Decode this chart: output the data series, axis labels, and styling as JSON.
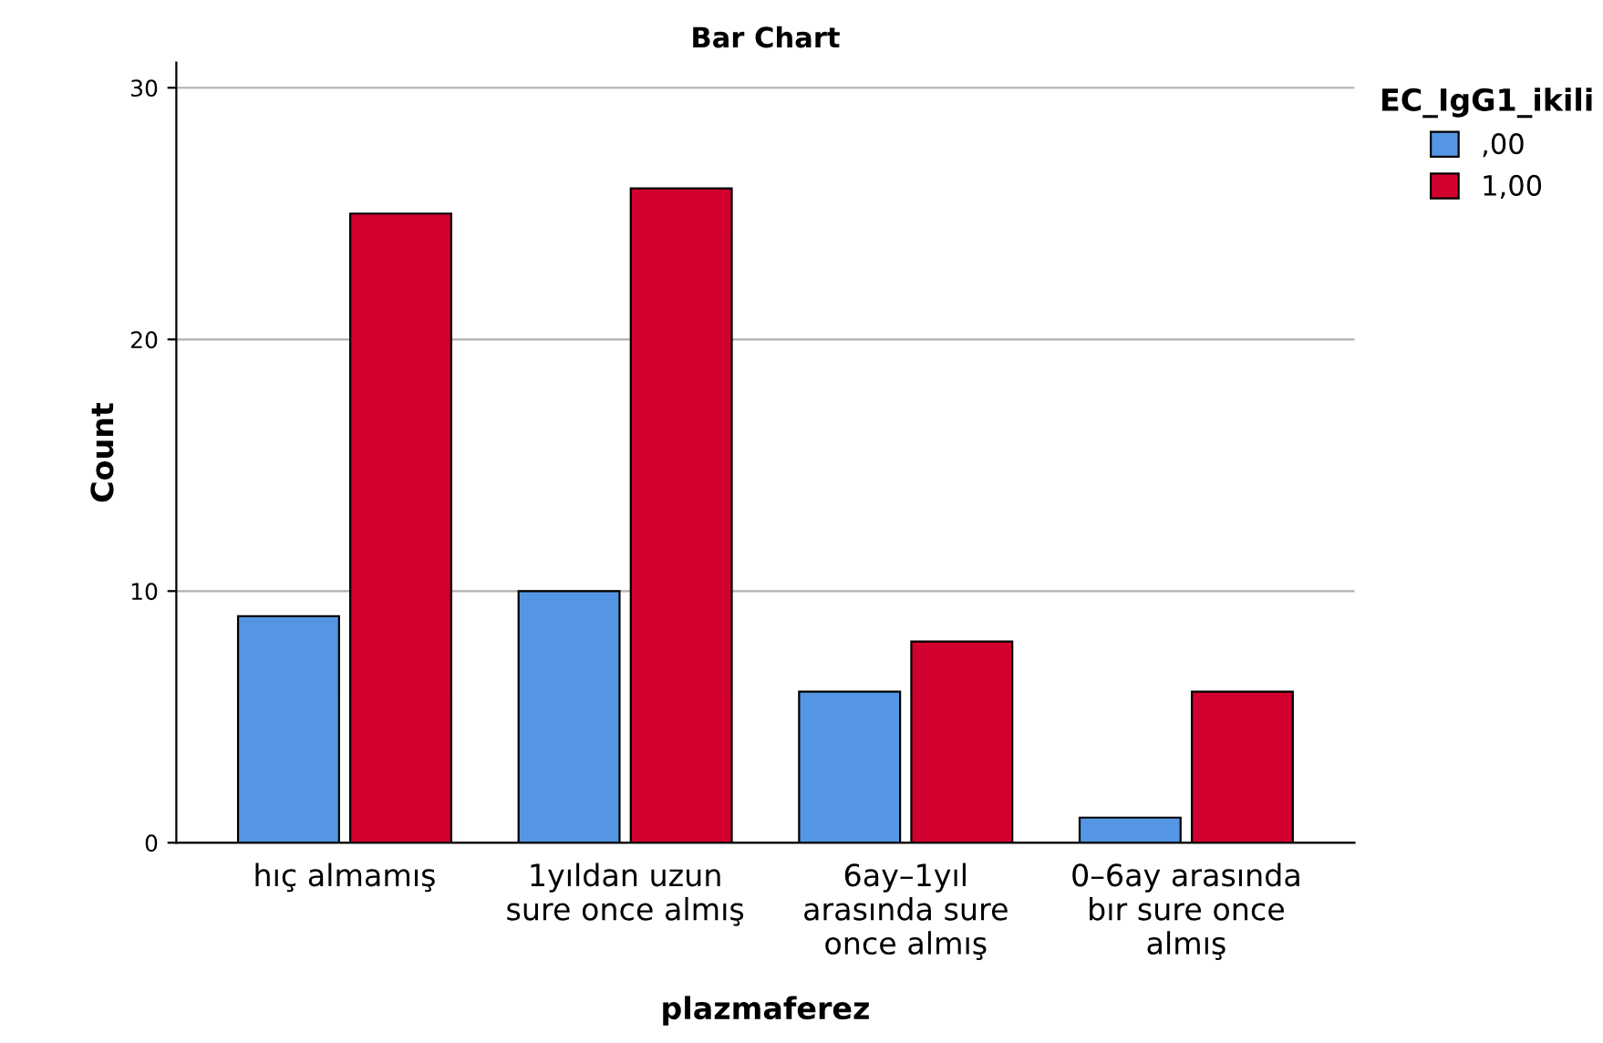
{
  "chart_data": {
    "type": "bar",
    "title": "Bar Chart",
    "xlabel": "plazmaferez",
    "ylabel": "Count",
    "legend_title": "EC_IgG1_ikili",
    "categories": [
      "hıç almamış",
      "1yıldan uzun\nsure once almış",
      "6ay–1yıl\narasında sure\nonce almış",
      "0–6ay arasında\nbır sure once\nalmış"
    ],
    "series": [
      {
        "name": ",00",
        "color": "#5496e3",
        "values": [
          9,
          10,
          6,
          1
        ]
      },
      {
        "name": "1,00",
        "color": "#d2002f",
        "values": [
          25,
          26,
          8,
          6
        ]
      }
    ],
    "ylim": [
      0,
      31
    ],
    "yticks": [
      0,
      10,
      20,
      30
    ],
    "grid": "y",
    "legend": "top right"
  }
}
